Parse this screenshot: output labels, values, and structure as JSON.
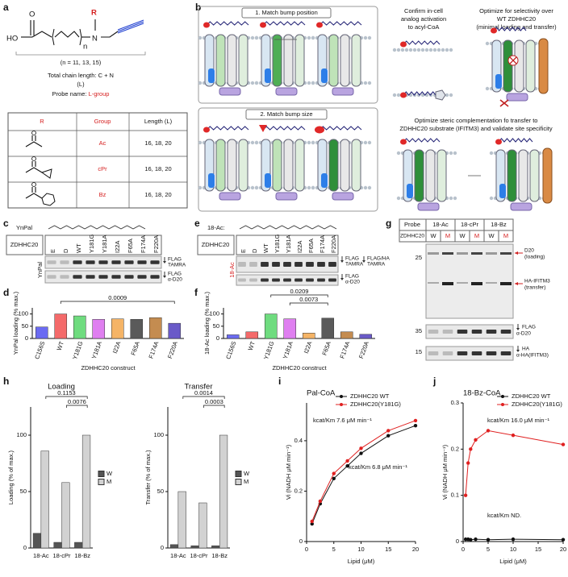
{
  "panel_a": {
    "label": "a",
    "structure": {
      "ho": "HO",
      "o": "O",
      "n": "N",
      "r": "R",
      "subscript": "n"
    },
    "range": "(n = 11, 13, 15)",
    "chain_length": "Total chain length: C + N",
    "chain_symbol": "(L)",
    "probe_name_prefix": "Probe name:",
    "probe_name_value": "L-group",
    "table": {
      "header": [
        "R",
        "Group",
        "Length (L)"
      ],
      "rows": [
        [
          "Ac",
          "16, 18, 20"
        ],
        [
          "cPr",
          "16, 18, 20"
        ],
        [
          "Bz",
          "16, 18, 20"
        ]
      ]
    }
  },
  "panel_b": {
    "label": "b",
    "step1": "1. Match bump position",
    "step2": "2. Match bump size",
    "activation": [
      "Confirm in-cell",
      "analog activation",
      "to acyl-CoA"
    ],
    "selectivity": [
      "Optimize for selectivity over",
      "WT ZDHHC20",
      "(minimal loading and transfer)"
    ],
    "transfer": [
      "Optimize steric complementation fo transfer to",
      "ZDHHC20 substrate (IFITM3) and validate site specificity"
    ]
  },
  "panel_c": {
    "label": "c",
    "probe": "YnPal",
    "row_label": "ZDHHC20",
    "lanes": [
      "E",
      "D",
      "WT",
      "Y181G",
      "Y181A",
      "I22A",
      "F65A",
      "F174A",
      "F220A"
    ],
    "side_label": "YnPal",
    "blot_labels": [
      [
        "FLAG",
        "TAMRA"
      ],
      [
        "FLAG",
        "α-D20"
      ]
    ]
  },
  "panel_e": {
    "label": "e",
    "probe": "18-Ac:",
    "row_label": "ZDHHC20",
    "lanes": [
      "E",
      "D",
      "WT",
      "Y181G",
      "Y181A",
      "I22A",
      "F65A",
      "F174A",
      "F220A"
    ],
    "side_label": "18-Ac",
    "blot_labels": [
      [
        "FLAG",
        "TAMRA"
      ],
      [
        "FLAG/HA",
        "TAMRA"
      ],
      [
        "FLAG",
        "α-D20"
      ]
    ]
  },
  "panel_g": {
    "label": "g",
    "probe_row": "Probe",
    "probes": [
      "18-Ac",
      "18-cPr",
      "18-Bz"
    ],
    "row_label": "ZDHHC20",
    "lanes": [
      "W",
      "M",
      "W",
      "M",
      "W",
      "M"
    ],
    "markers": [
      25,
      35,
      15
    ],
    "bands": [
      [
        "D20",
        "(loading)"
      ],
      [
        "HA-IFITM3",
        "(transfer)"
      ]
    ],
    "blot_labels": [
      [
        "FLAG",
        "α-D20"
      ],
      [
        "HA",
        "α-HA(IFITM3)"
      ]
    ]
  },
  "chart_data": [
    {
      "type": "bar",
      "panel": "d",
      "ylabel": "YnPal loading (% max.)",
      "xlabel": "ZDHHC20 construct",
      "categories": [
        "C156S",
        "WT",
        "Y181G",
        "Y181A",
        "I22A",
        "F65A",
        "F174A",
        "F220A"
      ],
      "values": [
        47,
        100,
        92,
        78,
        80,
        78,
        85,
        62
      ],
      "colors": [
        "#6b6bf2",
        "#f46a6a",
        "#6fdc7f",
        "#df7ff0",
        "#f5b466",
        "#5a5a5a",
        "#c48c50",
        "#6a5ac8"
      ],
      "ylim": [
        0,
        125
      ],
      "yticks": [
        0,
        50,
        100
      ],
      "annotations": [
        "0.0009"
      ]
    },
    {
      "type": "bar",
      "panel": "f",
      "ylabel": "18-Ac loading (% max.)",
      "xlabel": "ZDHHC20 construct",
      "categories": [
        "C156S",
        "WT",
        "Y181G",
        "Y181A",
        "I22A",
        "F65A",
        "F174A",
        "F220A"
      ],
      "values": [
        15,
        27,
        100,
        80,
        22,
        83,
        27,
        17
      ],
      "colors": [
        "#6b6bf2",
        "#f46a6a",
        "#6fdc7f",
        "#df7ff0",
        "#f5b466",
        "#5a5a5a",
        "#c48c50",
        "#6a5ac8"
      ],
      "ylim": [
        0,
        125
      ],
      "yticks": [
        0,
        50,
        100
      ],
      "annotations": [
        "0.0209",
        "0.0073"
      ]
    },
    {
      "type": "bar",
      "panel": "h",
      "title": "Loading",
      "ylabel": "Loading (% of max.)",
      "categories": [
        "18-Ac",
        "18-cPr",
        "18-Bz"
      ],
      "series": [
        {
          "name": "W",
          "color": "#555555",
          "values": [
            13,
            5,
            5
          ]
        },
        {
          "name": "M",
          "color": "#d2d2d2",
          "values": [
            86,
            58,
            100
          ]
        }
      ],
      "ylim": [
        0,
        125
      ],
      "yticks": [
        0,
        50,
        100
      ],
      "annotations": [
        "0.1153",
        "0.0076"
      ]
    },
    {
      "type": "bar",
      "title": "Transfer",
      "ylabel": "Transfer (% of max.)",
      "categories": [
        "18-Ac",
        "18-cPr",
        "18-Bz"
      ],
      "series": [
        {
          "name": "W",
          "color": "#555555",
          "values": [
            3,
            2,
            2
          ]
        },
        {
          "name": "M",
          "color": "#d2d2d2",
          "values": [
            50,
            40,
            100
          ]
        }
      ],
      "ylim": [
        0,
        125
      ],
      "yticks": [
        0,
        50,
        100
      ],
      "annotations": [
        "0.0014",
        "0.0003"
      ]
    },
    {
      "type": "line",
      "panel": "i",
      "title": "Pal-CoA",
      "xlabel": "Lipid (μM)",
      "ylabel": "Vi (NADH μM min⁻¹)",
      "x": [
        1,
        2.5,
        5,
        7.5,
        10,
        15,
        20
      ],
      "series": [
        {
          "name": "ZDHHC20 WT",
          "color": "#111111",
          "values": [
            0.07,
            0.15,
            0.25,
            0.3,
            0.35,
            0.42,
            0.46
          ]
        },
        {
          "name": "ZDHHC20(Y181G)",
          "color": "#e02020",
          "values": [
            0.08,
            0.16,
            0.27,
            0.32,
            0.37,
            0.44,
            0.48
          ]
        }
      ],
      "xlim": [
        0,
        20
      ],
      "xticks": [
        0,
        5,
        10,
        15,
        20
      ],
      "ylim": [
        0,
        0.55
      ],
      "yticks": [
        0,
        0.2,
        0.4
      ],
      "annotations": [
        "kcat/Km 7.6 μM min⁻¹",
        "kcat/Km 6.8 μM min⁻¹"
      ]
    },
    {
      "type": "line",
      "panel": "j",
      "title": "18-Bz-CoA",
      "xlabel": "Lipid (μM)",
      "ylabel": "Vi (NADH μM min⁻¹)",
      "x": [
        0.5,
        1,
        1.5,
        2.5,
        5,
        10,
        20
      ],
      "series": [
        {
          "name": "ZDHHC20 WT",
          "color": "#111111",
          "values": [
            0.005,
            0.005,
            0.004,
            0.005,
            0.004,
            0.005,
            0.004
          ]
        },
        {
          "name": "ZDHHC20(Y181G)",
          "color": "#e02020",
          "values": [
            0.1,
            0.17,
            0.2,
            0.22,
            0.24,
            0.23,
            0.21
          ]
        }
      ],
      "xlim": [
        0,
        20
      ],
      "xticks": [
        0,
        5,
        10,
        15,
        20
      ],
      "ylim": [
        0,
        0.3
      ],
      "yticks": [
        0,
        0.1,
        0.2,
        0.3
      ],
      "annotations": [
        "kcat/Km 16.0 μM min⁻¹",
        "kcat/Km ND."
      ]
    }
  ]
}
